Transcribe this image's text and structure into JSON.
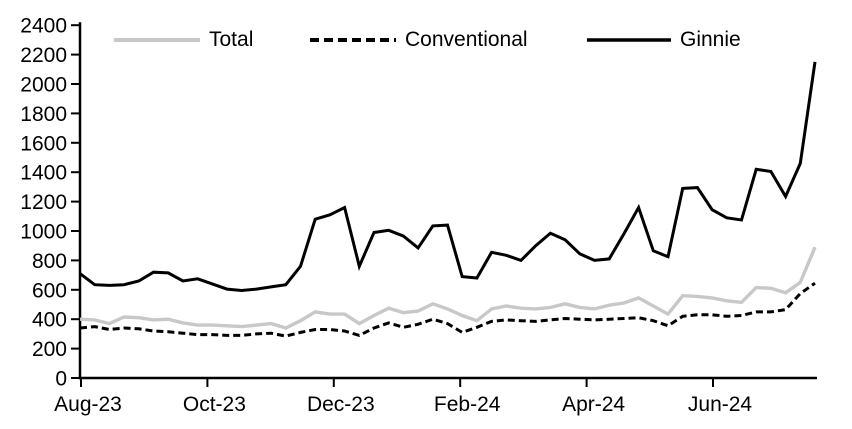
{
  "figure": {
    "background": "#ffffff",
    "axis_color": "#000000",
    "text_color": "#000000"
  },
  "legend": {
    "items": [
      {
        "label": "Total",
        "style": "solid",
        "color": "#c8c8c8"
      },
      {
        "label": "Conventional",
        "style": "dashed",
        "color": "#000000"
      },
      {
        "label": "Ginnie",
        "style": "solid",
        "color": "#000000"
      }
    ]
  },
  "chart_data": {
    "type": "line",
    "title": "",
    "xlabel": "",
    "ylabel": "",
    "frequency": "weekly",
    "n_points": 51,
    "x_axis": {
      "start": "Aug-23",
      "end": "Aug-24",
      "tick_labels": [
        "Aug-23",
        "Oct-23",
        "Dec-23",
        "Feb-24",
        "Apr-24",
        "Jun-24"
      ]
    },
    "y_axis": {
      "min": 0,
      "max": 2400,
      "tick_step": 200,
      "tick_labels": [
        "0",
        "200",
        "400",
        "600",
        "800",
        "1000",
        "1200",
        "1400",
        "1600",
        "1800",
        "2000",
        "2200",
        "2400"
      ]
    },
    "grid": false,
    "legend_position": "top",
    "series": [
      {
        "name": "Total",
        "color": "#c8c8c8",
        "style": "solid",
        "values": [
          400,
          395,
          370,
          415,
          410,
          395,
          400,
          375,
          360,
          360,
          355,
          350,
          360,
          370,
          340,
          390,
          450,
          435,
          435,
          370,
          425,
          475,
          445,
          455,
          505,
          470,
          425,
          390,
          470,
          490,
          475,
          470,
          480,
          505,
          480,
          470,
          495,
          510,
          545,
          490,
          435,
          560,
          555,
          545,
          525,
          515,
          615,
          610,
          580,
          650,
          890
        ]
      },
      {
        "name": "Conventional",
        "color": "#000000",
        "style": "dashed",
        "values": [
          340,
          350,
          330,
          340,
          335,
          320,
          315,
          305,
          295,
          295,
          290,
          290,
          300,
          305,
          285,
          310,
          330,
          330,
          320,
          290,
          340,
          375,
          345,
          365,
          400,
          370,
          310,
          345,
          385,
          395,
          390,
          385,
          395,
          405,
          400,
          395,
          400,
          405,
          410,
          390,
          355,
          420,
          430,
          430,
          420,
          425,
          450,
          450,
          465,
          575,
          645
        ]
      },
      {
        "name": "Ginnie",
        "color": "#000000",
        "style": "solid",
        "values": [
          710,
          635,
          630,
          635,
          660,
          720,
          715,
          660,
          675,
          640,
          605,
          595,
          605,
          620,
          635,
          760,
          1080,
          1110,
          1160,
          760,
          990,
          1005,
          965,
          885,
          1035,
          1040,
          690,
          680,
          855,
          835,
          800,
          900,
          985,
          940,
          845,
          800,
          810,
          980,
          1160,
          865,
          825,
          1290,
          1295,
          1145,
          1090,
          1075,
          1420,
          1405,
          1235,
          1460,
          2150
        ]
      }
    ]
  }
}
